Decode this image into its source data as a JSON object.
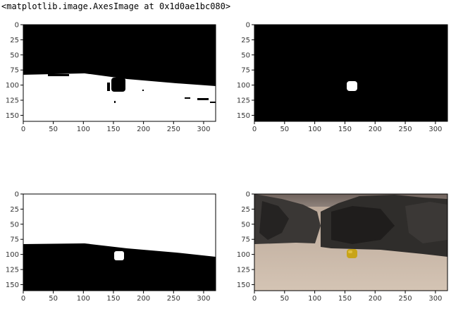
{
  "output": {
    "repr_text": "<matplotlib.image.AxesImage at 0x1d0ae1bc080>"
  },
  "axes_common": {
    "x_ticks": [
      "0",
      "50",
      "100",
      "150",
      "200",
      "250",
      "300"
    ],
    "y_ticks": [
      "0",
      "25",
      "50",
      "75",
      "100",
      "125",
      "150"
    ],
    "xlim": [
      0,
      320
    ],
    "ylim": [
      160,
      0
    ]
  },
  "panels": [
    {
      "id": "navigable-threshold",
      "position": "top-left",
      "kind": "binary-mask",
      "colors": {
        "background": "#000000",
        "foreground": "#ffffff"
      }
    },
    {
      "id": "rock-threshold",
      "position": "top-right",
      "kind": "binary-mask",
      "colors": {
        "background": "#000000",
        "foreground": "#ffffff"
      }
    },
    {
      "id": "obstacle-threshold",
      "position": "bottom-left",
      "kind": "binary-mask",
      "colors": {
        "background": "#ffffff",
        "foreground": "#000000"
      }
    },
    {
      "id": "rover-camera-image",
      "position": "bottom-right",
      "kind": "photo",
      "colors": {
        "sky": "#8a7f78",
        "ground": "#c9b8a8",
        "rocks": "#2b2b2b",
        "sample-rock": "#c8a418"
      }
    }
  ]
}
